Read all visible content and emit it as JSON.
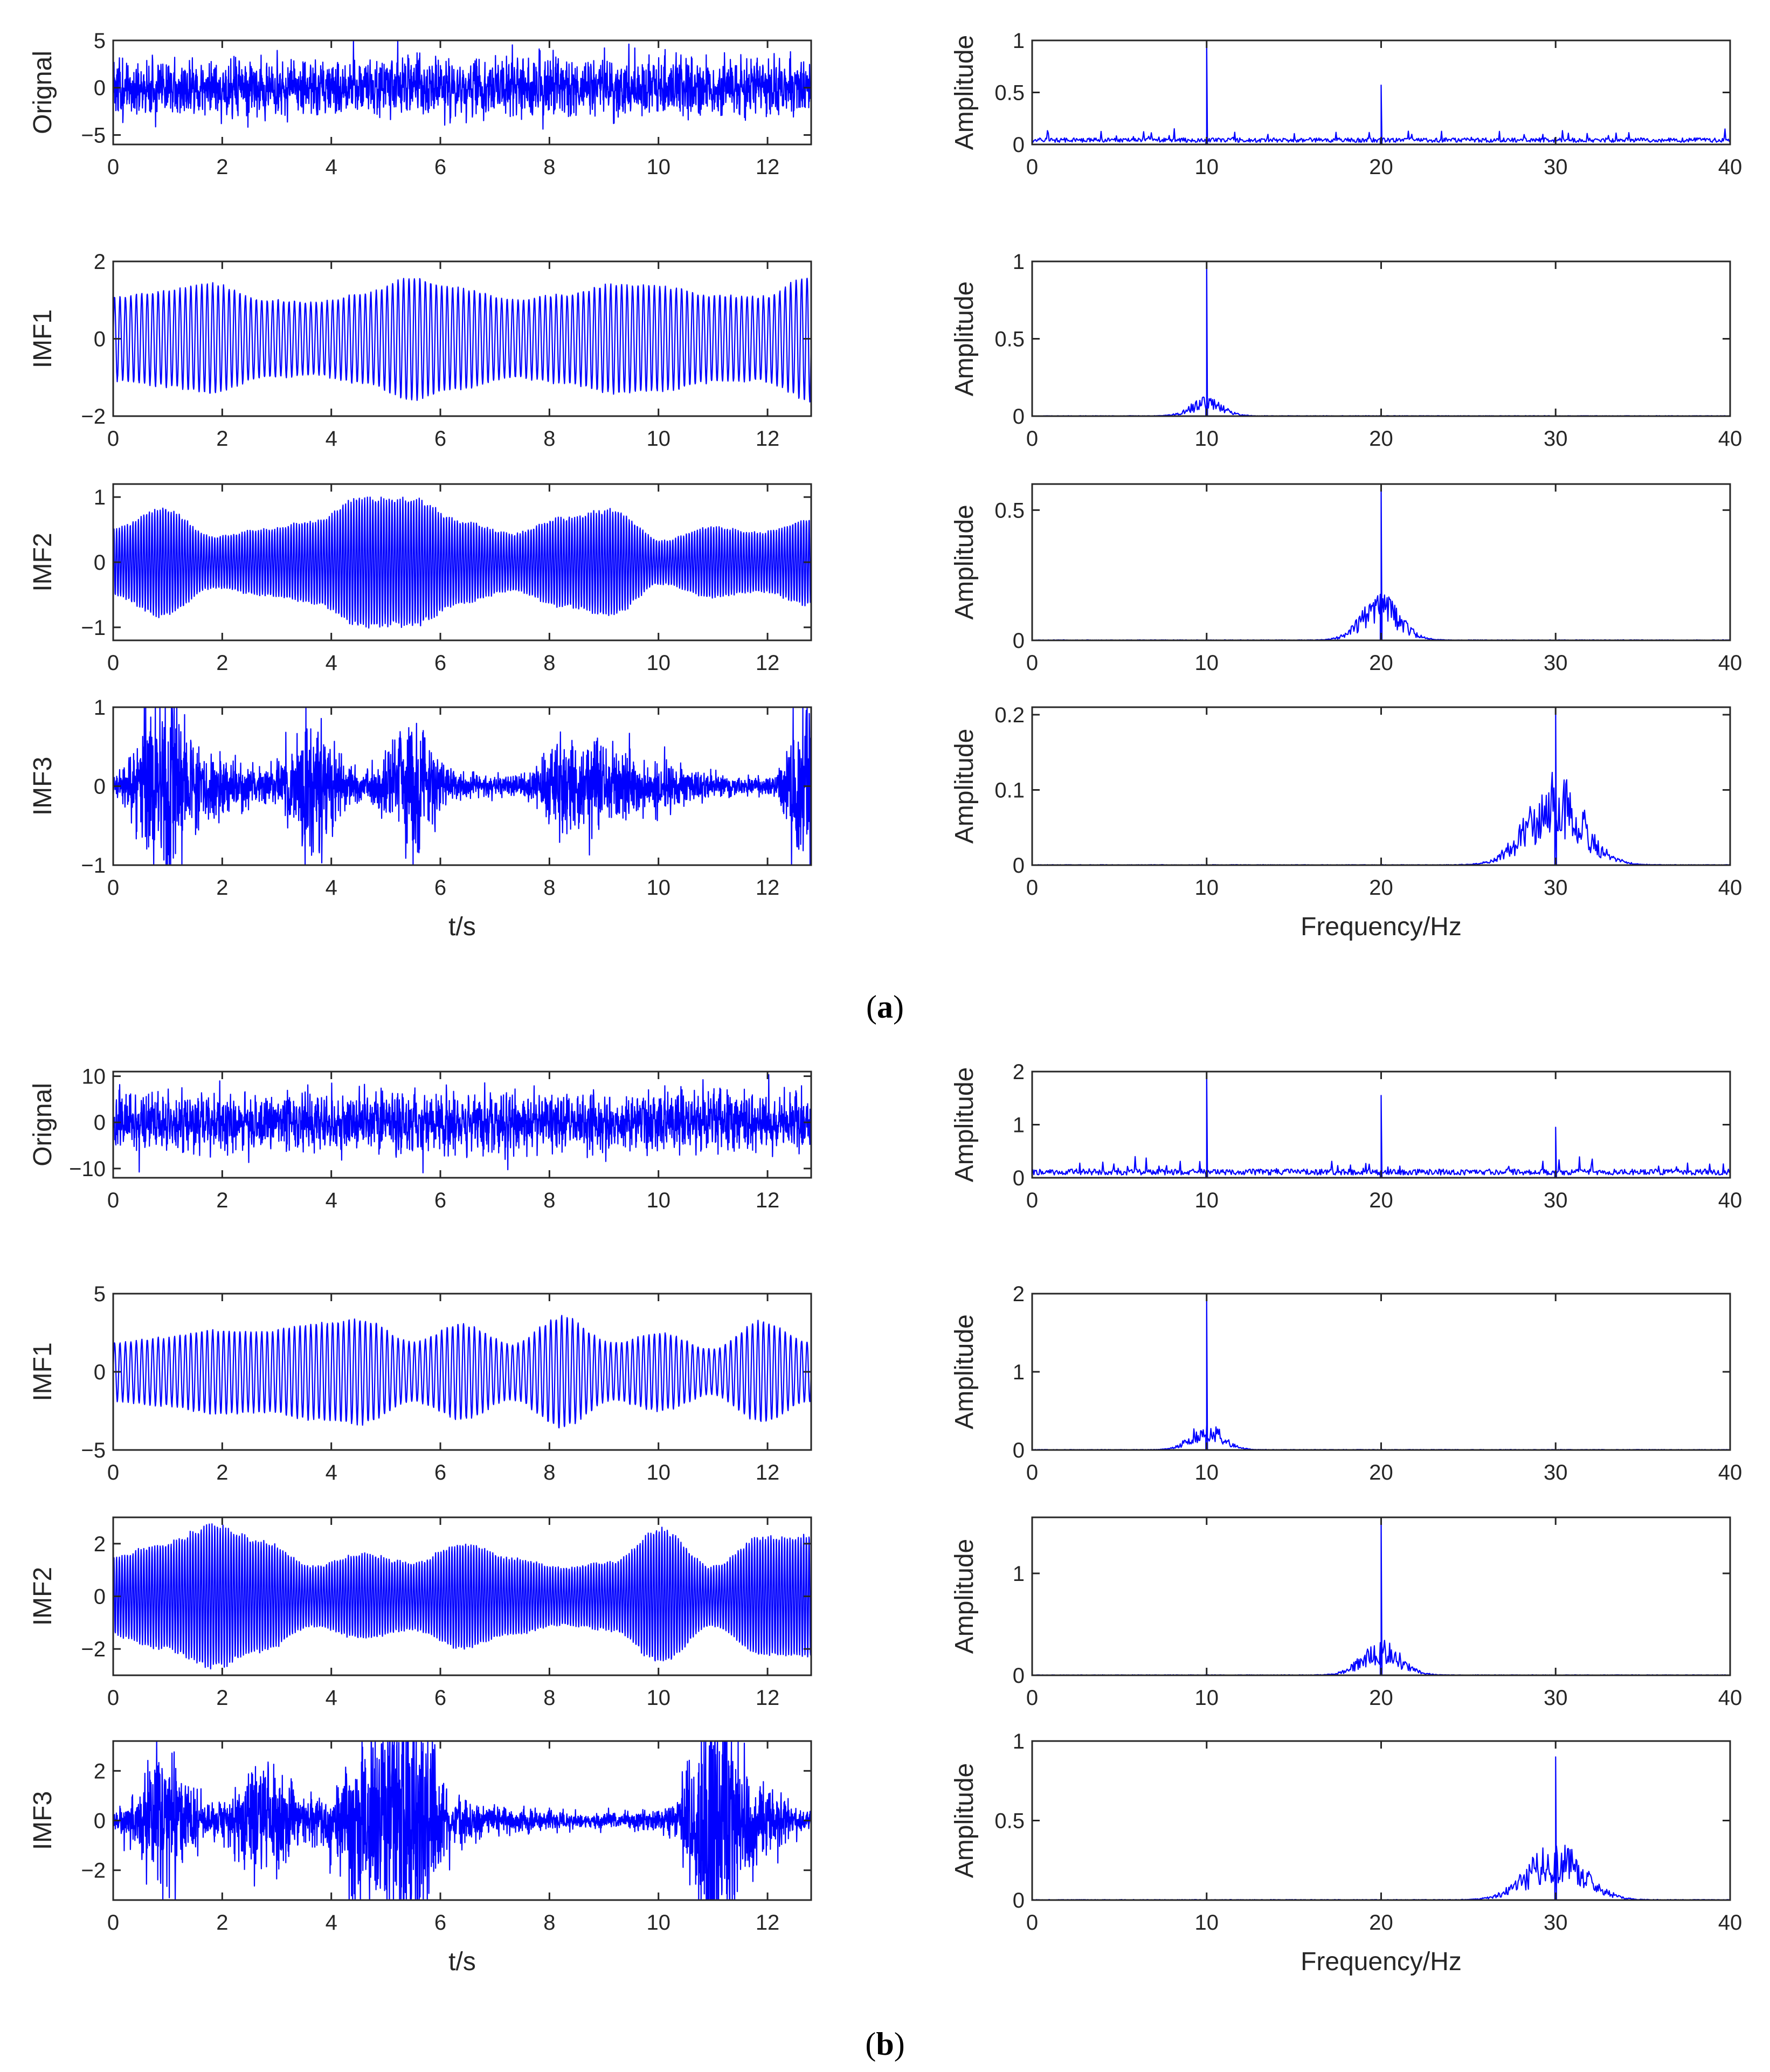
{
  "colors": {
    "signal": "#0000ff",
    "axis": "#262626"
  },
  "panels": [
    {
      "caption": "a",
      "caption_wrap_left": "(",
      "caption_wrap_right": ")"
    },
    {
      "caption": "b",
      "caption_wrap_left": "(",
      "caption_wrap_right": ")"
    }
  ],
  "chart_data": [
    {
      "type": "line",
      "panel": "a",
      "column": "time",
      "row": 0,
      "ylabel": "Orignal",
      "xlabel": "",
      "xlim": [
        0,
        12.8
      ],
      "ylim": [
        -6,
        5
      ],
      "xticks": [
        0,
        2,
        4,
        6,
        8,
        10,
        12
      ],
      "yticks": [
        -5,
        0,
        5
      ],
      "signal": {
        "kind": "noise",
        "amplitude": 2.3,
        "seed": 11
      }
    },
    {
      "type": "line",
      "panel": "a",
      "column": "freq",
      "row": 0,
      "ylabel": "Amplitude",
      "xlabel": "",
      "xlim": [
        0,
        40
      ],
      "ylim": [
        0,
        1
      ],
      "xticks": [
        0,
        10,
        20,
        30,
        40
      ],
      "yticks": [
        0,
        0.5,
        1
      ],
      "peaks": [
        {
          "f": 10,
          "a": 1.0
        },
        {
          "f": 20,
          "a": 0.57
        }
      ],
      "spectrum": {
        "kind": "flat",
        "floor": 0.07,
        "seed": 12
      }
    },
    {
      "type": "line",
      "panel": "a",
      "column": "time",
      "row": 1,
      "ylabel": "IMF1",
      "xlabel": "",
      "xlim": [
        0,
        12.8
      ],
      "ylim": [
        -2,
        2
      ],
      "xticks": [
        0,
        2,
        4,
        6,
        8,
        10,
        12
      ],
      "yticks": [
        -2,
        0,
        2
      ],
      "signal": {
        "kind": "am",
        "freq": 10,
        "amplitude": 1.3,
        "envelope_depth": 0.28,
        "seed": 13
      }
    },
    {
      "type": "line",
      "panel": "a",
      "column": "freq",
      "row": 1,
      "ylabel": "Amplitude",
      "xlabel": "",
      "xlim": [
        0,
        40
      ],
      "ylim": [
        0,
        1
      ],
      "xticks": [
        0,
        10,
        20,
        30,
        40
      ],
      "yticks": [
        0,
        0.5,
        1
      ],
      "peaks": [
        {
          "f": 10,
          "a": 1.0
        }
      ],
      "spectrum": {
        "kind": "band",
        "center": 10,
        "width": 0.9,
        "height": 0.1,
        "seed": 14
      }
    },
    {
      "type": "line",
      "panel": "a",
      "column": "time",
      "row": 2,
      "ylabel": "IMF2",
      "xlabel": "",
      "xlim": [
        0,
        12.8
      ],
      "ylim": [
        -1.2,
        1.2
      ],
      "xticks": [
        0,
        2,
        4,
        6,
        8,
        10,
        12
      ],
      "yticks": [
        -1,
        0,
        1
      ],
      "signal": {
        "kind": "am",
        "freq": 20,
        "amplitude": 0.75,
        "envelope_depth": 0.55,
        "seed": 15
      }
    },
    {
      "type": "line",
      "panel": "a",
      "column": "freq",
      "row": 2,
      "ylabel": "Amplitude",
      "xlabel": "",
      "xlim": [
        0,
        40
      ],
      "ylim": [
        0,
        0.6
      ],
      "xticks": [
        0,
        10,
        20,
        30,
        40
      ],
      "yticks": [
        0,
        0.5
      ],
      "peaks": [
        {
          "f": 20,
          "a": 0.6
        }
      ],
      "spectrum": {
        "kind": "band",
        "center": 20,
        "width": 1.1,
        "height": 0.15,
        "seed": 16
      }
    },
    {
      "type": "line",
      "panel": "a",
      "column": "time",
      "row": 3,
      "ylabel": "IMF3",
      "xlabel": "t/s",
      "xlim": [
        0,
        12.8
      ],
      "ylim": [
        -1,
        1
      ],
      "xticks": [
        0,
        2,
        4,
        6,
        8,
        10,
        12
      ],
      "yticks": [
        -1,
        0,
        1
      ],
      "signal": {
        "kind": "burst",
        "amplitude": 0.45,
        "seed": 17
      }
    },
    {
      "type": "line",
      "panel": "a",
      "column": "freq",
      "row": 3,
      "ylabel": "Amplitude",
      "xlabel": "Frequency/Hz",
      "xlim": [
        0,
        40
      ],
      "ylim": [
        0,
        0.21
      ],
      "xticks": [
        0,
        10,
        20,
        30,
        40
      ],
      "yticks": [
        0,
        0.1,
        0.2
      ],
      "peaks": [
        {
          "f": 30,
          "a": 0.21
        }
      ],
      "spectrum": {
        "kind": "band",
        "center": 30,
        "width": 1.6,
        "height": 0.1,
        "seed": 18
      }
    },
    {
      "type": "line",
      "panel": "b",
      "column": "time",
      "row": 0,
      "ylabel": "Orignal",
      "xlabel": "",
      "xlim": [
        0,
        12.8
      ],
      "ylim": [
        -12,
        11
      ],
      "xticks": [
        0,
        2,
        4,
        6,
        8,
        10,
        12
      ],
      "yticks": [
        -10,
        0,
        10
      ],
      "signal": {
        "kind": "noise",
        "amplitude": 4.8,
        "seed": 21
      }
    },
    {
      "type": "line",
      "panel": "b",
      "column": "freq",
      "row": 0,
      "ylabel": "Amplitude",
      "xlabel": "",
      "xlim": [
        0,
        40
      ],
      "ylim": [
        0,
        2
      ],
      "xticks": [
        0,
        10,
        20,
        30,
        40
      ],
      "yticks": [
        0,
        1,
        2
      ],
      "peaks": [
        {
          "f": 10,
          "a": 2.0
        },
        {
          "f": 20,
          "a": 1.55
        },
        {
          "f": 30,
          "a": 0.95
        }
      ],
      "spectrum": {
        "kind": "flat",
        "floor": 0.18,
        "seed": 22
      }
    },
    {
      "type": "line",
      "panel": "b",
      "column": "time",
      "row": 1,
      "ylabel": "IMF1",
      "xlabel": "",
      "xlim": [
        0,
        12.8
      ],
      "ylim": [
        -5,
        5
      ],
      "xticks": [
        0,
        2,
        4,
        6,
        8,
        10,
        12
      ],
      "yticks": [
        -5,
        0,
        5
      ],
      "signal": {
        "kind": "am",
        "freq": 10,
        "amplitude": 2.6,
        "envelope_depth": 0.5,
        "seed": 23
      }
    },
    {
      "type": "line",
      "panel": "b",
      "column": "freq",
      "row": 1,
      "ylabel": "Amplitude",
      "xlabel": "",
      "xlim": [
        0,
        40
      ],
      "ylim": [
        0,
        2
      ],
      "xticks": [
        0,
        10,
        20,
        30,
        40
      ],
      "yticks": [
        0,
        1,
        2
      ],
      "peaks": [
        {
          "f": 10,
          "a": 1.9
        }
      ],
      "spectrum": {
        "kind": "band",
        "center": 10,
        "width": 0.9,
        "height": 0.3,
        "seed": 24
      }
    },
    {
      "type": "line",
      "panel": "b",
      "column": "time",
      "row": 2,
      "ylabel": "IMF2",
      "xlabel": "",
      "xlim": [
        0,
        12.8
      ],
      "ylim": [
        -3,
        3
      ],
      "xticks": [
        0,
        2,
        4,
        6,
        8,
        10,
        12
      ],
      "yticks": [
        -2,
        0,
        2
      ],
      "signal": {
        "kind": "am",
        "freq": 20,
        "amplitude": 2.0,
        "envelope_depth": 0.45,
        "seed": 25
      }
    },
    {
      "type": "line",
      "panel": "b",
      "column": "freq",
      "row": 2,
      "ylabel": "Amplitude",
      "xlabel": "",
      "xlim": [
        0,
        40
      ],
      "ylim": [
        0,
        1.55
      ],
      "xticks": [
        0,
        10,
        20,
        30,
        40
      ],
      "yticks": [
        0,
        1
      ],
      "peaks": [
        {
          "f": 20,
          "a": 1.55
        }
      ],
      "spectrum": {
        "kind": "band",
        "center": 20,
        "width": 1.1,
        "height": 0.28,
        "seed": 26
      }
    },
    {
      "type": "line",
      "panel": "b",
      "column": "time",
      "row": 3,
      "ylabel": "IMF3",
      "xlabel": "t/s",
      "xlim": [
        0,
        12.8
      ],
      "ylim": [
        -3.2,
        3.2
      ],
      "xticks": [
        0,
        2,
        4,
        6,
        8,
        10,
        12
      ],
      "yticks": [
        -2,
        0,
        2
      ],
      "signal": {
        "kind": "burst",
        "amplitude": 1.3,
        "seed": 27
      }
    },
    {
      "type": "line",
      "panel": "b",
      "column": "freq",
      "row": 3,
      "ylabel": "Amplitude",
      "xlabel": "Frequency/Hz",
      "xlim": [
        0,
        40
      ],
      "ylim": [
        0,
        1
      ],
      "xticks": [
        0,
        10,
        20,
        30,
        40
      ],
      "yticks": [
        0,
        0.5,
        1
      ],
      "peaks": [
        {
          "f": 30,
          "a": 0.9
        }
      ],
      "spectrum": {
        "kind": "band",
        "center": 30,
        "width": 1.6,
        "height": 0.3,
        "seed": 28
      }
    }
  ]
}
